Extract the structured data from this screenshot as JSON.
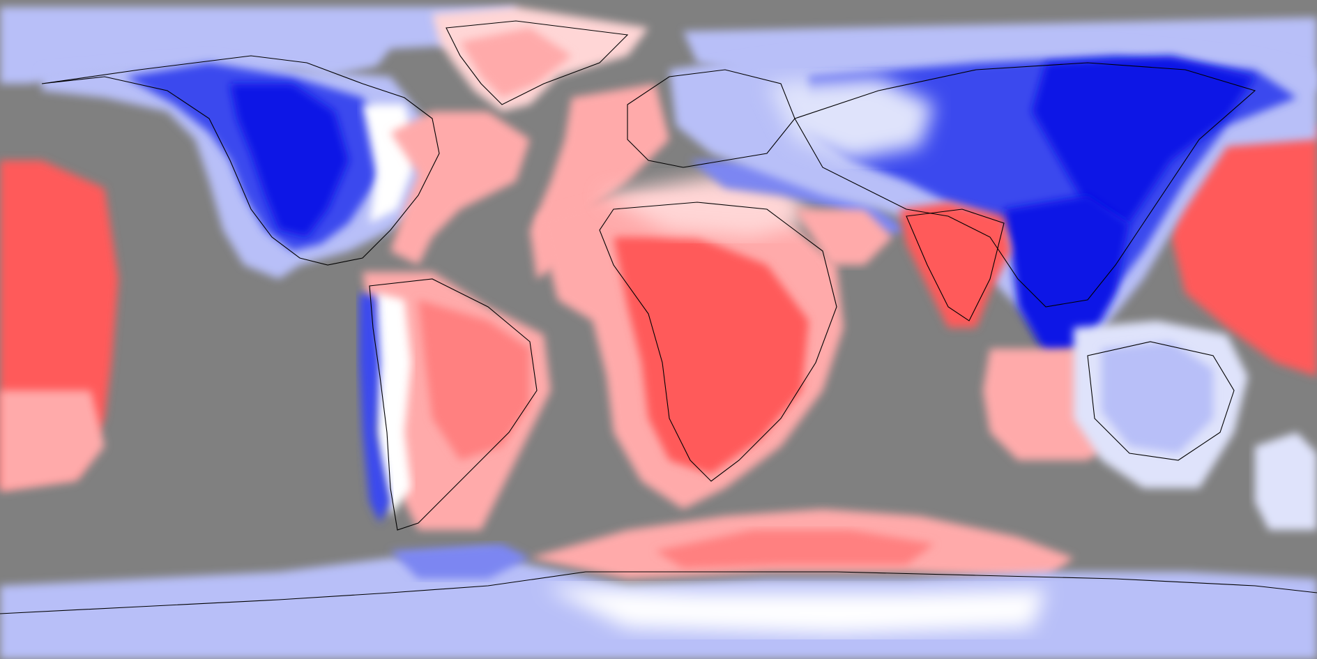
{
  "map": {
    "projection": "equirectangular",
    "no_data_color": "#808080",
    "coastline_color": "#000000",
    "colors": {
      "strong_blue": "#0a18e6",
      "blue": "#3a49ee",
      "mid_blue": "#7b86f2",
      "light_blue": "#b8bff8",
      "pale_blue": "#dfe3fb",
      "white": "#ffffff",
      "pale_red": "#ffd6d6",
      "light_red": "#ffaaaa",
      "mid_red": "#ff8080",
      "red": "#ff5a5a",
      "strong_red": "#ff3a3a"
    }
  }
}
